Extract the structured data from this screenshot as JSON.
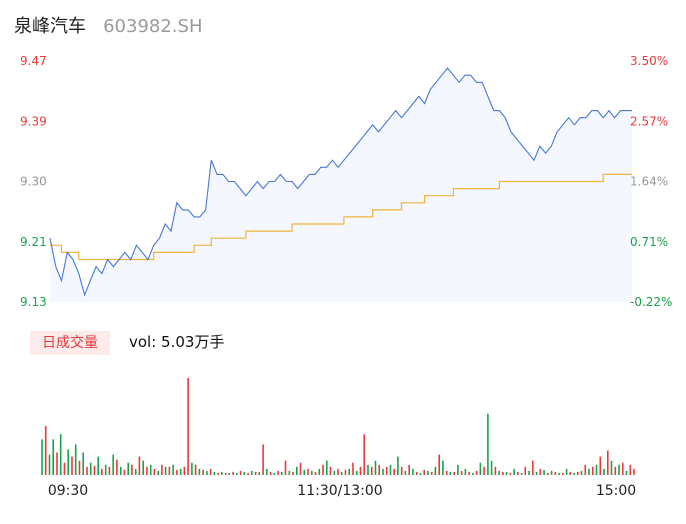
{
  "header": {
    "name": "泉峰汽车",
    "code": "603982.SH"
  },
  "volume": {
    "tag": "日成交量",
    "label": "vol: 5.03万手"
  },
  "colors": {
    "price_line": "#4a78d6",
    "avg_line": "#f0b43c",
    "up": "#e83a3a",
    "down": "#1aa34a",
    "neutral": "#999999",
    "area_fill": "#f4f7fd"
  },
  "chart_data": {
    "type": "line",
    "title": "",
    "prev_close": 9.15,
    "ylim": [
      9.13,
      9.47
    ],
    "y_ticks_left": [
      "9.47",
      "9.39",
      "9.30",
      "9.21",
      "9.13"
    ],
    "y_ticks_right": [
      "3.50%",
      "2.57%",
      "1.64%",
      "0.71%",
      "-0.22%"
    ],
    "x_ticks": [
      "09:30",
      "11:30/13:00",
      "15:00"
    ],
    "price": [
      9.22,
      9.18,
      9.16,
      9.2,
      9.19,
      9.17,
      9.14,
      9.16,
      9.18,
      9.17,
      9.19,
      9.18,
      9.19,
      9.2,
      9.19,
      9.21,
      9.2,
      9.19,
      9.21,
      9.22,
      9.24,
      9.23,
      9.27,
      9.26,
      9.26,
      9.25,
      9.25,
      9.26,
      9.33,
      9.31,
      9.31,
      9.3,
      9.3,
      9.29,
      9.28,
      9.29,
      9.3,
      9.29,
      9.3,
      9.3,
      9.31,
      9.3,
      9.3,
      9.29,
      9.3,
      9.31,
      9.31,
      9.32,
      9.32,
      9.33,
      9.32,
      9.33,
      9.34,
      9.35,
      9.36,
      9.37,
      9.38,
      9.37,
      9.38,
      9.39,
      9.4,
      9.39,
      9.4,
      9.41,
      9.42,
      9.41,
      9.43,
      9.44,
      9.45,
      9.46,
      9.45,
      9.44,
      9.45,
      9.45,
      9.44,
      9.44,
      9.42,
      9.4,
      9.4,
      9.39,
      9.37,
      9.36,
      9.35,
      9.34,
      9.33,
      9.35,
      9.34,
      9.35,
      9.37,
      9.38,
      9.39,
      9.38,
      9.39,
      9.39,
      9.4,
      9.4,
      9.39,
      9.4,
      9.39,
      9.4,
      9.4,
      9.4
    ],
    "avg_price": [
      9.21,
      9.21,
      9.2,
      9.2,
      9.2,
      9.19,
      9.19,
      9.19,
      9.19,
      9.19,
      9.19,
      9.19,
      9.19,
      9.19,
      9.19,
      9.19,
      9.19,
      9.19,
      9.2,
      9.2,
      9.2,
      9.2,
      9.2,
      9.2,
      9.2,
      9.21,
      9.21,
      9.21,
      9.22,
      9.22,
      9.22,
      9.22,
      9.22,
      9.22,
      9.23,
      9.23,
      9.23,
      9.23,
      9.23,
      9.23,
      9.23,
      9.23,
      9.24,
      9.24,
      9.24,
      9.24,
      9.24,
      9.24,
      9.24,
      9.24,
      9.24,
      9.25,
      9.25,
      9.25,
      9.25,
      9.25,
      9.26,
      9.26,
      9.26,
      9.26,
      9.26,
      9.27,
      9.27,
      9.27,
      9.27,
      9.28,
      9.28,
      9.28,
      9.28,
      9.28,
      9.29,
      9.29,
      9.29,
      9.29,
      9.29,
      9.29,
      9.29,
      9.29,
      9.3,
      9.3,
      9.3,
      9.3,
      9.3,
      9.3,
      9.3,
      9.3,
      9.3,
      9.3,
      9.3,
      9.3,
      9.3,
      9.3,
      9.3,
      9.3,
      9.3,
      9.3,
      9.31,
      9.31,
      9.31,
      9.31,
      9.31,
      9.31
    ],
    "volumes": [
      35,
      48,
      20,
      35,
      22,
      40,
      12,
      25,
      18,
      30,
      14,
      22,
      8,
      12,
      9,
      18,
      6,
      10,
      8,
      20,
      15,
      8,
      5,
      12,
      10,
      6,
      18,
      14,
      8,
      10,
      6,
      4,
      10,
      8,
      8,
      10,
      5,
      6,
      8,
      95,
      12,
      10,
      6,
      5,
      4,
      6,
      3,
      2,
      3,
      2,
      2,
      3,
      2,
      4,
      3,
      2,
      4,
      3,
      3,
      30,
      6,
      3,
      2,
      4,
      3,
      14,
      4,
      3,
      8,
      12,
      5,
      6,
      4,
      3,
      6,
      10,
      14,
      8,
      4,
      6,
      3,
      5,
      6,
      12,
      4,
      8,
      40,
      10,
      8,
      14,
      10,
      6,
      8,
      10,
      6,
      18,
      8,
      4,
      10,
      6,
      3,
      2,
      5,
      4,
      3,
      8,
      20,
      14,
      4,
      3,
      3,
      10,
      4,
      6,
      3,
      2,
      4,
      12,
      8,
      60,
      14,
      8,
      4,
      3,
      3,
      2,
      6,
      3,
      2,
      8,
      4,
      14,
      3,
      6,
      5,
      2,
      4,
      3,
      2,
      2,
      6,
      3,
      2,
      3,
      4,
      10,
      6,
      8,
      10,
      18,
      6,
      24,
      14,
      8,
      10,
      12,
      4,
      10,
      6
    ],
    "volume_colors": [
      "down",
      "up",
      "down",
      "down",
      "up",
      "down",
      "up",
      "down",
      "up",
      "down",
      "up",
      "down",
      "up",
      "down",
      "up",
      "down",
      "up",
      "down",
      "up",
      "down",
      "up",
      "down",
      "up",
      "down",
      "up",
      "down",
      "up",
      "down",
      "up",
      "down",
      "up",
      "down",
      "up",
      "down",
      "up",
      "down",
      "up",
      "down",
      "up",
      "up",
      "down",
      "up",
      "down",
      "up",
      "down",
      "up",
      "down",
      "up",
      "down",
      "up",
      "down",
      "up",
      "down",
      "up",
      "down",
      "up",
      "down",
      "up",
      "down",
      "up",
      "down",
      "up",
      "down",
      "up",
      "down",
      "up",
      "down",
      "up",
      "down",
      "up",
      "down",
      "up",
      "down",
      "up",
      "down",
      "up",
      "down",
      "up",
      "down",
      "up",
      "down",
      "up",
      "down",
      "up",
      "down",
      "up",
      "up",
      "down",
      "up",
      "down",
      "up",
      "down",
      "up",
      "down",
      "up",
      "down",
      "up",
      "down",
      "up",
      "down",
      "up",
      "down",
      "up",
      "down",
      "up",
      "down",
      "up",
      "down",
      "up",
      "down",
      "up",
      "down",
      "up",
      "down",
      "up",
      "down",
      "up",
      "down",
      "up",
      "down",
      "down",
      "up",
      "down",
      "up",
      "down",
      "up",
      "down",
      "up",
      "down",
      "up",
      "down",
      "up",
      "down",
      "up",
      "down",
      "up",
      "down",
      "up",
      "down",
      "up",
      "down",
      "up",
      "down",
      "up",
      "down",
      "up",
      "down",
      "up",
      "down",
      "up",
      "down",
      "up",
      "down",
      "up",
      "down",
      "up",
      "down",
      "up",
      "up"
    ]
  }
}
